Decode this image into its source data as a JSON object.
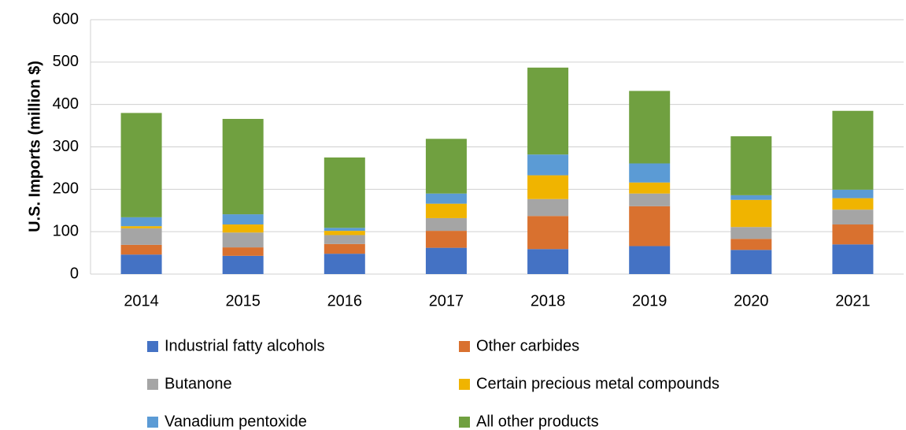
{
  "chart_data": {
    "type": "stacked_bar",
    "y_label": "U.S. Imports (million $)",
    "categories": [
      "2014",
      "2015",
      "2016",
      "2017",
      "2018",
      "2019",
      "2020",
      "2021"
    ],
    "series": [
      {
        "name": "Industrial fatty alcohols",
        "color": "#4472c4",
        "values": [
          46,
          43,
          48,
          62,
          59,
          66,
          57,
          70
        ]
      },
      {
        "name": "Other carbides",
        "color": "#d9712f",
        "values": [
          23,
          20,
          23,
          40,
          78,
          94,
          26,
          47
        ]
      },
      {
        "name": "Butanone",
        "color": "#a5a5a5",
        "values": [
          39,
          35,
          21,
          30,
          40,
          30,
          28,
          35
        ]
      },
      {
        "name": "Certain precious metal compounds",
        "color": "#f0b400",
        "values": [
          5,
          19,
          10,
          34,
          56,
          26,
          64,
          27
        ]
      },
      {
        "name": "Vanadium pentoxide",
        "color": "#5b9bd5",
        "values": [
          21,
          24,
          7,
          24,
          49,
          45,
          11,
          20
        ]
      },
      {
        "name": "All other products",
        "color": "#70a040",
        "values": [
          246,
          225,
          166,
          129,
          205,
          171,
          139,
          186
        ]
      }
    ],
    "ylim": [
      0,
      600
    ],
    "yticks": [
      0,
      100,
      200,
      300,
      400,
      500,
      600
    ],
    "grid": true
  }
}
